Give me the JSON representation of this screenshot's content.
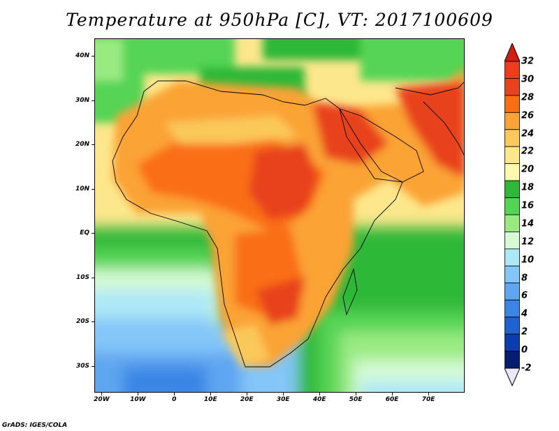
{
  "title": "Temperature at 950hPa [C], VT: 2017100609",
  "credit": "GrADS: IGES/COLA",
  "map": {
    "lon_range": [
      -22,
      80
    ],
    "lat_range": [
      -36,
      44
    ],
    "lat_labels": [
      {
        "lat": 40,
        "text": "40N"
      },
      {
        "lat": 30,
        "text": "30N"
      },
      {
        "lat": 20,
        "text": "20N"
      },
      {
        "lat": 10,
        "text": "10N"
      },
      {
        "lat": 0,
        "text": "EQ"
      },
      {
        "lat": -10,
        "text": "10S"
      },
      {
        "lat": -20,
        "text": "20S"
      },
      {
        "lat": -30,
        "text": "30S"
      }
    ],
    "lon_labels": [
      {
        "lon": -20,
        "text": "20W"
      },
      {
        "lon": -10,
        "text": "10W"
      },
      {
        "lon": 0,
        "text": "0"
      },
      {
        "lon": 10,
        "text": "10E"
      },
      {
        "lon": 20,
        "text": "20E"
      },
      {
        "lon": 30,
        "text": "30E"
      },
      {
        "lon": 40,
        "text": "40E"
      },
      {
        "lon": 50,
        "text": "50E"
      },
      {
        "lon": 60,
        "text": "60E"
      },
      {
        "lon": 70,
        "text": "70E"
      }
    ]
  },
  "colorbar": {
    "labels": [
      "32",
      "30",
      "28",
      "26",
      "24",
      "22",
      "20",
      "18",
      "16",
      "14",
      "12",
      "10",
      "8",
      "6",
      "4",
      "2",
      "0",
      "-2"
    ],
    "colors": [
      "#ffffff",
      "#f03c1e",
      "#e8421f",
      "#fa6e12",
      "#fba336",
      "#fbc85a",
      "#fde78c",
      "#fdfaaf",
      "#2fb838",
      "#55d454",
      "#9aea82",
      "#d6fad4",
      "#ade8f7",
      "#84c6f8",
      "#5ea6f1",
      "#3a85e5",
      "#1f62d1",
      "#0b3cb0",
      "#061c6e",
      "#ffffff"
    ]
  }
}
